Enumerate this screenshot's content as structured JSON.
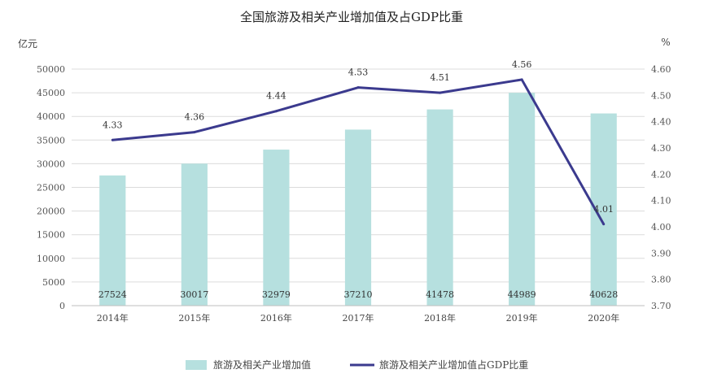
{
  "chart_data": {
    "type": "bar",
    "title": "全国旅游及相关产业增加值及占GDP比重",
    "y_left_unit": "亿元",
    "y_right_unit": "%",
    "categories": [
      "2014年",
      "2015年",
      "2016年",
      "2017年",
      "2018年",
      "2019年",
      "2020年"
    ],
    "series": [
      {
        "name": "旅游及相关产业增加值",
        "type": "bar",
        "axis": "left",
        "color": "#b6e0df",
        "values": [
          27524,
          30017,
          32979,
          37210,
          41478,
          44989,
          40628
        ]
      },
      {
        "name": "旅游及相关产业增加值占GDP比重",
        "type": "line",
        "axis": "right",
        "color": "#3b3a8e",
        "values": [
          4.33,
          4.36,
          4.44,
          4.53,
          4.51,
          4.56,
          4.01
        ]
      }
    ],
    "y_left_ticks": [
      "0",
      "5000",
      "10000",
      "15000",
      "20000",
      "25000",
      "30000",
      "35000",
      "40000",
      "45000",
      "50000"
    ],
    "y_right_ticks": [
      "3.70",
      "3.80",
      "3.90",
      "4.00",
      "4.10",
      "4.20",
      "4.30",
      "4.40",
      "4.50",
      "4.60"
    ],
    "ylim_left": [
      0,
      50000
    ],
    "ylim_right": [
      3.7,
      4.6
    ],
    "grid": true,
    "legend_position": "bottom"
  }
}
